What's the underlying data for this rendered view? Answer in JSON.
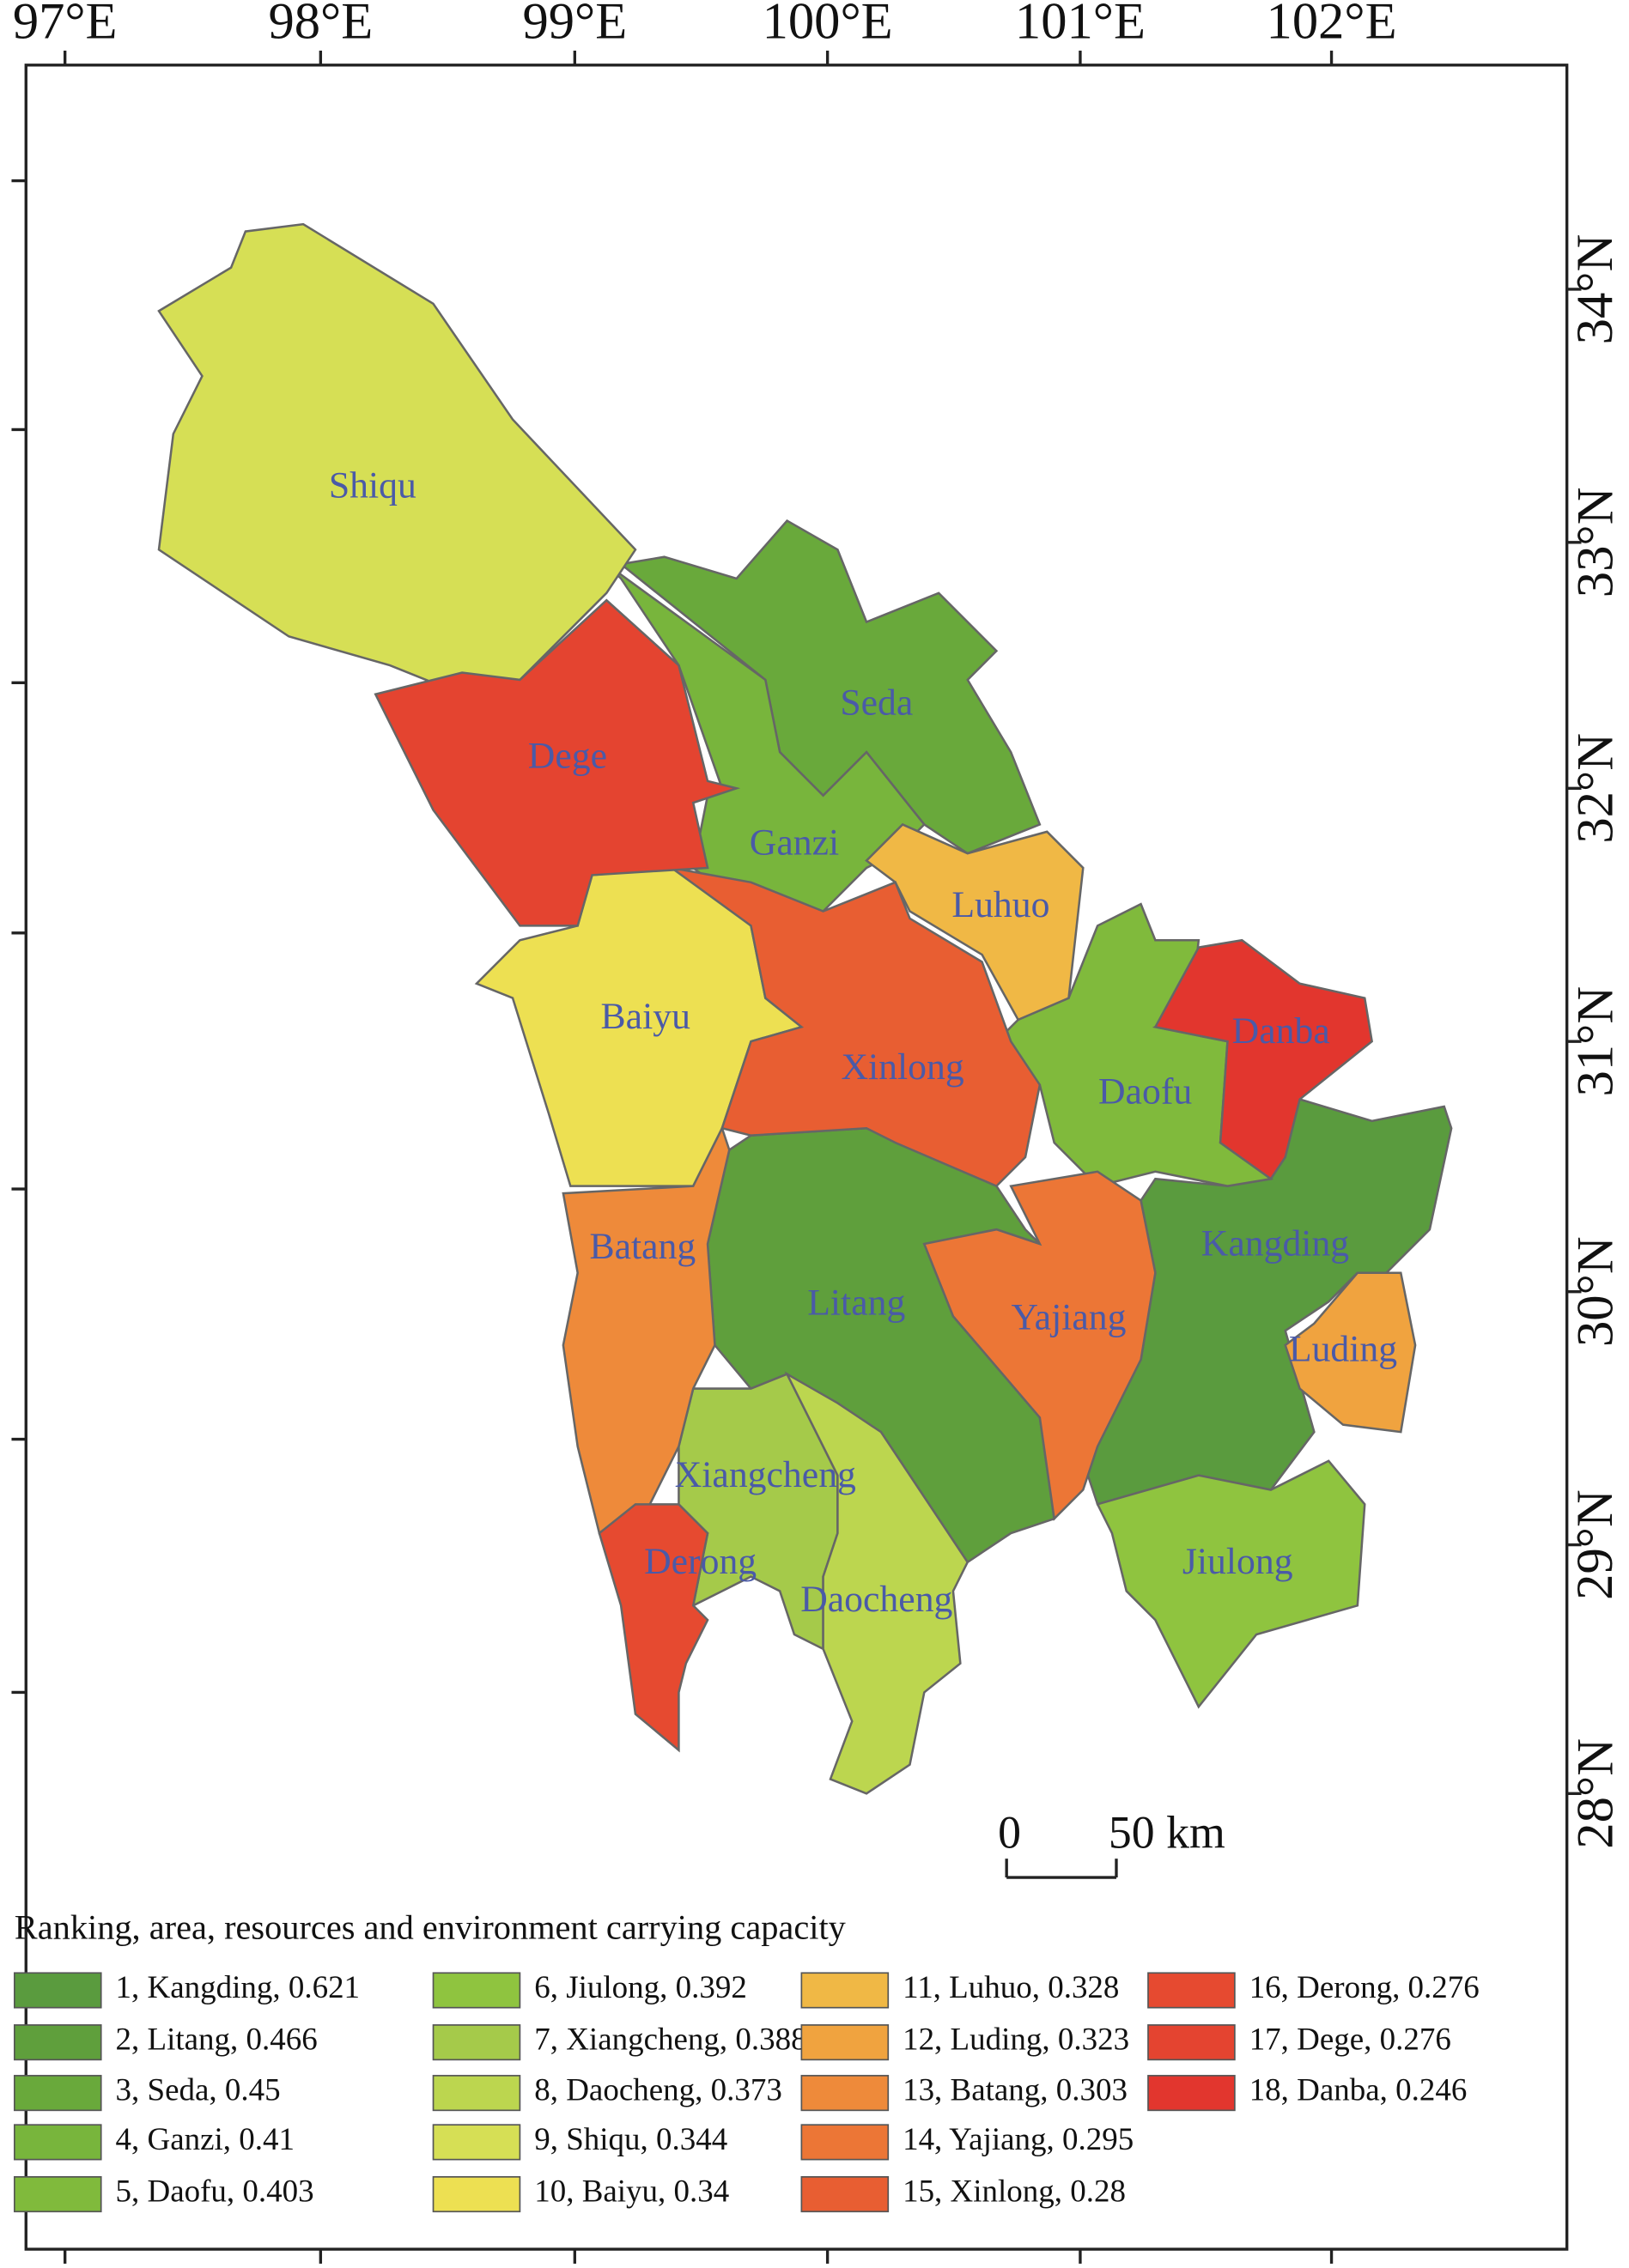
{
  "map": {
    "lon_labels": [
      "97°E",
      "98°E",
      "99°E",
      "100°E",
      "101°E",
      "102°E"
    ],
    "lat_labels": [
      "34°N",
      "33°N",
      "32°N",
      "31°N",
      "30°N",
      "29°N",
      "28°N"
    ],
    "scale_bar": {
      "start": "0",
      "end": "50 km"
    },
    "regions": [
      {
        "name": "Kangding",
        "color": "#5a9b3e"
      },
      {
        "name": "Litang",
        "color": "#5f9f3c"
      },
      {
        "name": "Seda",
        "color": "#69a93b"
      },
      {
        "name": "Ganzi",
        "color": "#78b53c"
      },
      {
        "name": "Daofu",
        "color": "#80ba3c"
      },
      {
        "name": "Jiulong",
        "color": "#8fc43f"
      },
      {
        "name": "Xiangcheng",
        "color": "#a5ca4a"
      },
      {
        "name": "Daocheng",
        "color": "#bcd64f"
      },
      {
        "name": "Shiqu",
        "color": "#d6df55"
      },
      {
        "name": "Baiyu",
        "color": "#ede052"
      },
      {
        "name": "Luhuo",
        "color": "#f0b845"
      },
      {
        "name": "Luding",
        "color": "#f0a33f"
      },
      {
        "name": "Batang",
        "color": "#ee8a3a"
      },
      {
        "name": "Yajiang",
        "color": "#ec7636"
      },
      {
        "name": "Xinlong",
        "color": "#e85e32"
      },
      {
        "name": "Derong",
        "color": "#e64a30"
      },
      {
        "name": "Dege",
        "color": "#e44430"
      },
      {
        "name": "Danba",
        "color": "#e2362e"
      }
    ],
    "legend": {
      "title": "Ranking, area, resources and  environment carrying capacity",
      "items": [
        "1, Kangding, 0.621",
        "2, Litang, 0.466",
        "3, Seda, 0.45",
        "4, Ganzi, 0.41",
        "5, Daofu, 0.403",
        "6, Jiulong, 0.392",
        "7, Xiangcheng, 0.388",
        "8, Daocheng, 0.373",
        "9, Shiqu, 0.344",
        "10, Baiyu, 0.34",
        "11, Luhuo, 0.328",
        "12, Luding, 0.323",
        "13, Batang, 0.303",
        "14, Yajiang, 0.295",
        "15, Xinlong, 0.28",
        "16, Derong, 0.276",
        "17, Dege, 0.276",
        "18, Danba, 0.246"
      ]
    }
  }
}
